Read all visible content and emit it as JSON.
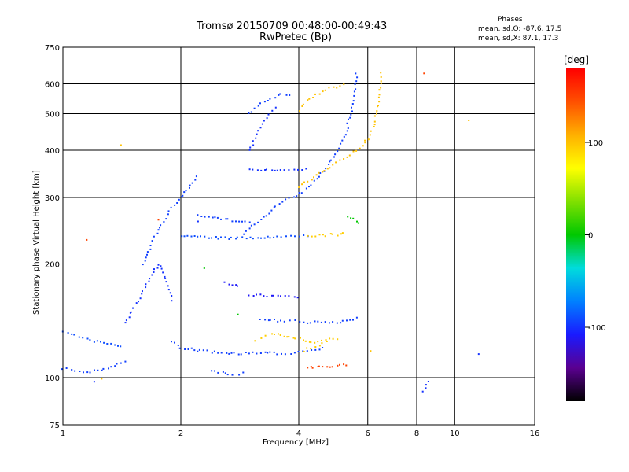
{
  "chart_data": {
    "type": "scatter",
    "title": "Tromsø 20150709 00:48:00-00:49:43",
    "subtitle": "RwPretec (Bp)",
    "phase_stats": {
      "heading": "Phases",
      "o_line": "mean, sd,O: -87.6, 17.5",
      "x_line": "mean, sd,X:  87.1, 17.3"
    },
    "xlabel": "Frequency [MHz]",
    "ylabel": "Stationary phase Virtual Height [km]",
    "x_scale": "log",
    "y_scale": "log",
    "xlim": [
      1,
      16
    ],
    "ylim": [
      75,
      750
    ],
    "x_ticks": [
      1,
      2,
      4,
      6,
      8,
      10,
      16
    ],
    "y_ticks": [
      75,
      100,
      200,
      300,
      400,
      500,
      600,
      750
    ],
    "grid": true,
    "colorbar": {
      "label": "[deg]",
      "range": [
        -180,
        180
      ],
      "ticks": [
        100,
        0,
        -100
      ],
      "colors": [
        "#000000",
        "#5a0090",
        "#1a1aff",
        "#0080ff",
        "#00dcdc",
        "#00c800",
        "#80e000",
        "#ffff00",
        "#ffb000",
        "#ff5000",
        "#ff0000"
      ]
    },
    "traces": [
      {
        "phase": -95,
        "points": [
          [
            1.0,
            106
          ],
          [
            1.05,
            105
          ],
          [
            1.1,
            104
          ],
          [
            1.15,
            103
          ],
          [
            1.2,
            104
          ],
          [
            1.25,
            105
          ],
          [
            1.3,
            106
          ],
          [
            1.35,
            108
          ],
          [
            1.4,
            109
          ],
          [
            1.45,
            110
          ]
        ]
      },
      {
        "phase": -90,
        "points": [
          [
            1.0,
            132
          ],
          [
            1.05,
            131
          ],
          [
            1.1,
            128
          ],
          [
            1.15,
            126
          ],
          [
            1.2,
            125
          ],
          [
            1.25,
            124
          ],
          [
            1.3,
            123
          ],
          [
            1.35,
            122
          ],
          [
            1.4,
            121
          ]
        ]
      },
      {
        "phase": -95,
        "points": [
          [
            1.6,
            200
          ],
          [
            1.65,
            215
          ],
          [
            1.7,
            230
          ],
          [
            1.75,
            245
          ],
          [
            1.8,
            260
          ],
          [
            1.85,
            270
          ],
          [
            1.9,
            280
          ],
          [
            1.95,
            290
          ],
          [
            2.0,
            300
          ],
          [
            2.05,
            310
          ],
          [
            2.1,
            320
          ],
          [
            2.2,
            340
          ]
        ]
      },
      {
        "phase": -100,
        "points": [
          [
            1.45,
            140
          ],
          [
            1.5,
            150
          ],
          [
            1.55,
            160
          ],
          [
            1.6,
            170
          ],
          [
            1.65,
            180
          ],
          [
            1.7,
            190
          ],
          [
            1.75,
            200
          ],
          [
            1.8,
            190
          ],
          [
            1.85,
            175
          ],
          [
            1.9,
            160
          ]
        ]
      },
      {
        "phase": -95,
        "points": [
          [
            1.9,
            125
          ],
          [
            2.0,
            120
          ],
          [
            2.2,
            118
          ],
          [
            2.4,
            117
          ],
          [
            2.6,
            116
          ],
          [
            2.8,
            116
          ],
          [
            3.0,
            116
          ],
          [
            3.2,
            116
          ],
          [
            3.4,
            116
          ],
          [
            3.6,
            116
          ],
          [
            3.8,
            116
          ],
          [
            4.0,
            117
          ],
          [
            4.2,
            118
          ],
          [
            4.4,
            119
          ],
          [
            4.6,
            120
          ]
        ]
      },
      {
        "phase": 95,
        "points": [
          [
            4.1,
            118
          ],
          [
            4.2,
            119
          ],
          [
            4.3,
            120
          ],
          [
            4.4,
            121
          ],
          [
            4.5,
            122
          ],
          [
            4.6,
            123
          ],
          [
            4.7,
            124
          ]
        ]
      },
      {
        "phase": -90,
        "points": [
          [
            2.0,
            238
          ],
          [
            2.2,
            236
          ],
          [
            2.4,
            235
          ],
          [
            2.6,
            234
          ],
          [
            2.8,
            234
          ],
          [
            3.0,
            234
          ],
          [
            3.2,
            235
          ],
          [
            3.4,
            235
          ],
          [
            3.6,
            236
          ],
          [
            3.8,
            236
          ],
          [
            4.0,
            237
          ],
          [
            4.2,
            237
          ]
        ]
      },
      {
        "phase": 95,
        "points": [
          [
            4.2,
            237
          ],
          [
            4.4,
            238
          ],
          [
            4.6,
            238
          ],
          [
            4.8,
            239
          ],
          [
            5.0,
            239
          ],
          [
            5.2,
            240
          ]
        ]
      },
      {
        "phase": -95,
        "points": [
          [
            2.9,
            240
          ],
          [
            3.1,
            255
          ],
          [
            3.3,
            270
          ],
          [
            3.5,
            285
          ],
          [
            3.7,
            295
          ],
          [
            3.9,
            300
          ],
          [
            4.1,
            310
          ],
          [
            4.3,
            325
          ],
          [
            4.5,
            340
          ],
          [
            4.7,
            360
          ],
          [
            4.9,
            385
          ],
          [
            5.1,
            415
          ],
          [
            5.3,
            450
          ],
          [
            5.4,
            490
          ],
          [
            5.5,
            530
          ],
          [
            5.55,
            570
          ],
          [
            5.6,
            610
          ],
          [
            5.6,
            640
          ]
        ]
      },
      {
        "phase": 100,
        "points": [
          [
            4.0,
            320
          ],
          [
            4.3,
            335
          ],
          [
            4.6,
            350
          ],
          [
            4.9,
            365
          ],
          [
            5.2,
            380
          ],
          [
            5.5,
            395
          ],
          [
            5.8,
            410
          ],
          [
            6.0,
            430
          ],
          [
            6.2,
            460
          ],
          [
            6.3,
            500
          ],
          [
            6.4,
            550
          ],
          [
            6.45,
            600
          ],
          [
            6.5,
            640
          ]
        ]
      },
      {
        "phase": -100,
        "points": [
          [
            3.0,
            400
          ],
          [
            3.1,
            430
          ],
          [
            3.2,
            460
          ],
          [
            3.3,
            490
          ],
          [
            3.4,
            510
          ],
          [
            3.5,
            520
          ]
        ]
      },
      {
        "phase": -95,
        "points": [
          [
            3.0,
            500
          ],
          [
            3.2,
            530
          ],
          [
            3.4,
            550
          ],
          [
            3.6,
            560
          ],
          [
            3.8,
            560
          ]
        ]
      },
      {
        "phase": 100,
        "points": [
          [
            4.0,
            510
          ],
          [
            4.2,
            540
          ],
          [
            4.4,
            560
          ],
          [
            4.6,
            575
          ],
          [
            4.8,
            585
          ],
          [
            5.0,
            590
          ],
          [
            5.2,
            595
          ]
        ]
      },
      {
        "phase": -95,
        "points": [
          [
            3.2,
            142
          ],
          [
            3.4,
            142
          ],
          [
            3.6,
            141
          ],
          [
            3.8,
            141
          ],
          [
            4.0,
            141
          ],
          [
            4.2,
            140
          ],
          [
            4.4,
            140
          ],
          [
            4.6,
            140
          ],
          [
            4.8,
            140
          ],
          [
            5.0,
            140
          ],
          [
            5.2,
            141
          ],
          [
            5.4,
            142
          ],
          [
            5.6,
            144
          ]
        ]
      },
      {
        "phase": 95,
        "points": [
          [
            3.1,
            126
          ],
          [
            3.2,
            128
          ],
          [
            3.3,
            130
          ],
          [
            3.4,
            131
          ],
          [
            4.4,
            124
          ],
          [
            4.6,
            125
          ],
          [
            4.8,
            126
          ],
          [
            5.0,
            127
          ]
        ]
      },
      {
        "phase": -110,
        "points": [
          [
            3.0,
            165
          ],
          [
            3.2,
            165
          ],
          [
            3.4,
            165
          ],
          [
            3.6,
            164
          ],
          [
            3.8,
            164
          ],
          [
            4.0,
            164
          ],
          [
            2.6,
            178
          ],
          [
            2.7,
            176
          ],
          [
            2.8,
            174
          ]
        ]
      },
      {
        "phase": -95,
        "points": [
          [
            2.4,
            104
          ],
          [
            2.5,
            103
          ],
          [
            2.6,
            103
          ],
          [
            2.7,
            102
          ],
          [
            2.8,
            102
          ],
          [
            2.9,
            103
          ]
        ]
      },
      {
        "phase": -100,
        "points": [
          [
            3.0,
            355
          ],
          [
            3.2,
            355
          ],
          [
            3.4,
            355
          ],
          [
            3.6,
            355
          ],
          [
            3.8,
            355
          ],
          [
            4.0,
            355
          ],
          [
            4.2,
            355
          ]
        ]
      },
      {
        "phase": -95,
        "points": [
          [
            2.2,
            270
          ],
          [
            2.4,
            265
          ],
          [
            2.6,
            262
          ],
          [
            2.8,
            260
          ],
          [
            3.0,
            258
          ]
        ]
      },
      {
        "phase": 150,
        "points": [
          [
            1.15,
            232
          ],
          [
            1.75,
            262
          ],
          [
            4.2,
            106
          ],
          [
            5.3,
            108
          ],
          [
            8.4,
            640
          ]
        ]
      },
      {
        "phase": 0,
        "points": [
          [
            5.3,
            265
          ],
          [
            5.5,
            262
          ],
          [
            5.7,
            257
          ],
          [
            2.3,
            195
          ],
          [
            2.8,
            148
          ]
        ]
      },
      {
        "phase": 100,
        "points": [
          [
            1.25,
            100
          ],
          [
            1.4,
            410
          ],
          [
            10.9,
            480
          ],
          [
            6.1,
            117
          ]
        ]
      },
      {
        "phase": -100,
        "points": [
          [
            11.5,
            115
          ],
          [
            8.3,
            92
          ],
          [
            8.6,
            97
          ],
          [
            2.2,
            260
          ],
          [
            1.2,
            98
          ]
        ]
      }
    ]
  }
}
